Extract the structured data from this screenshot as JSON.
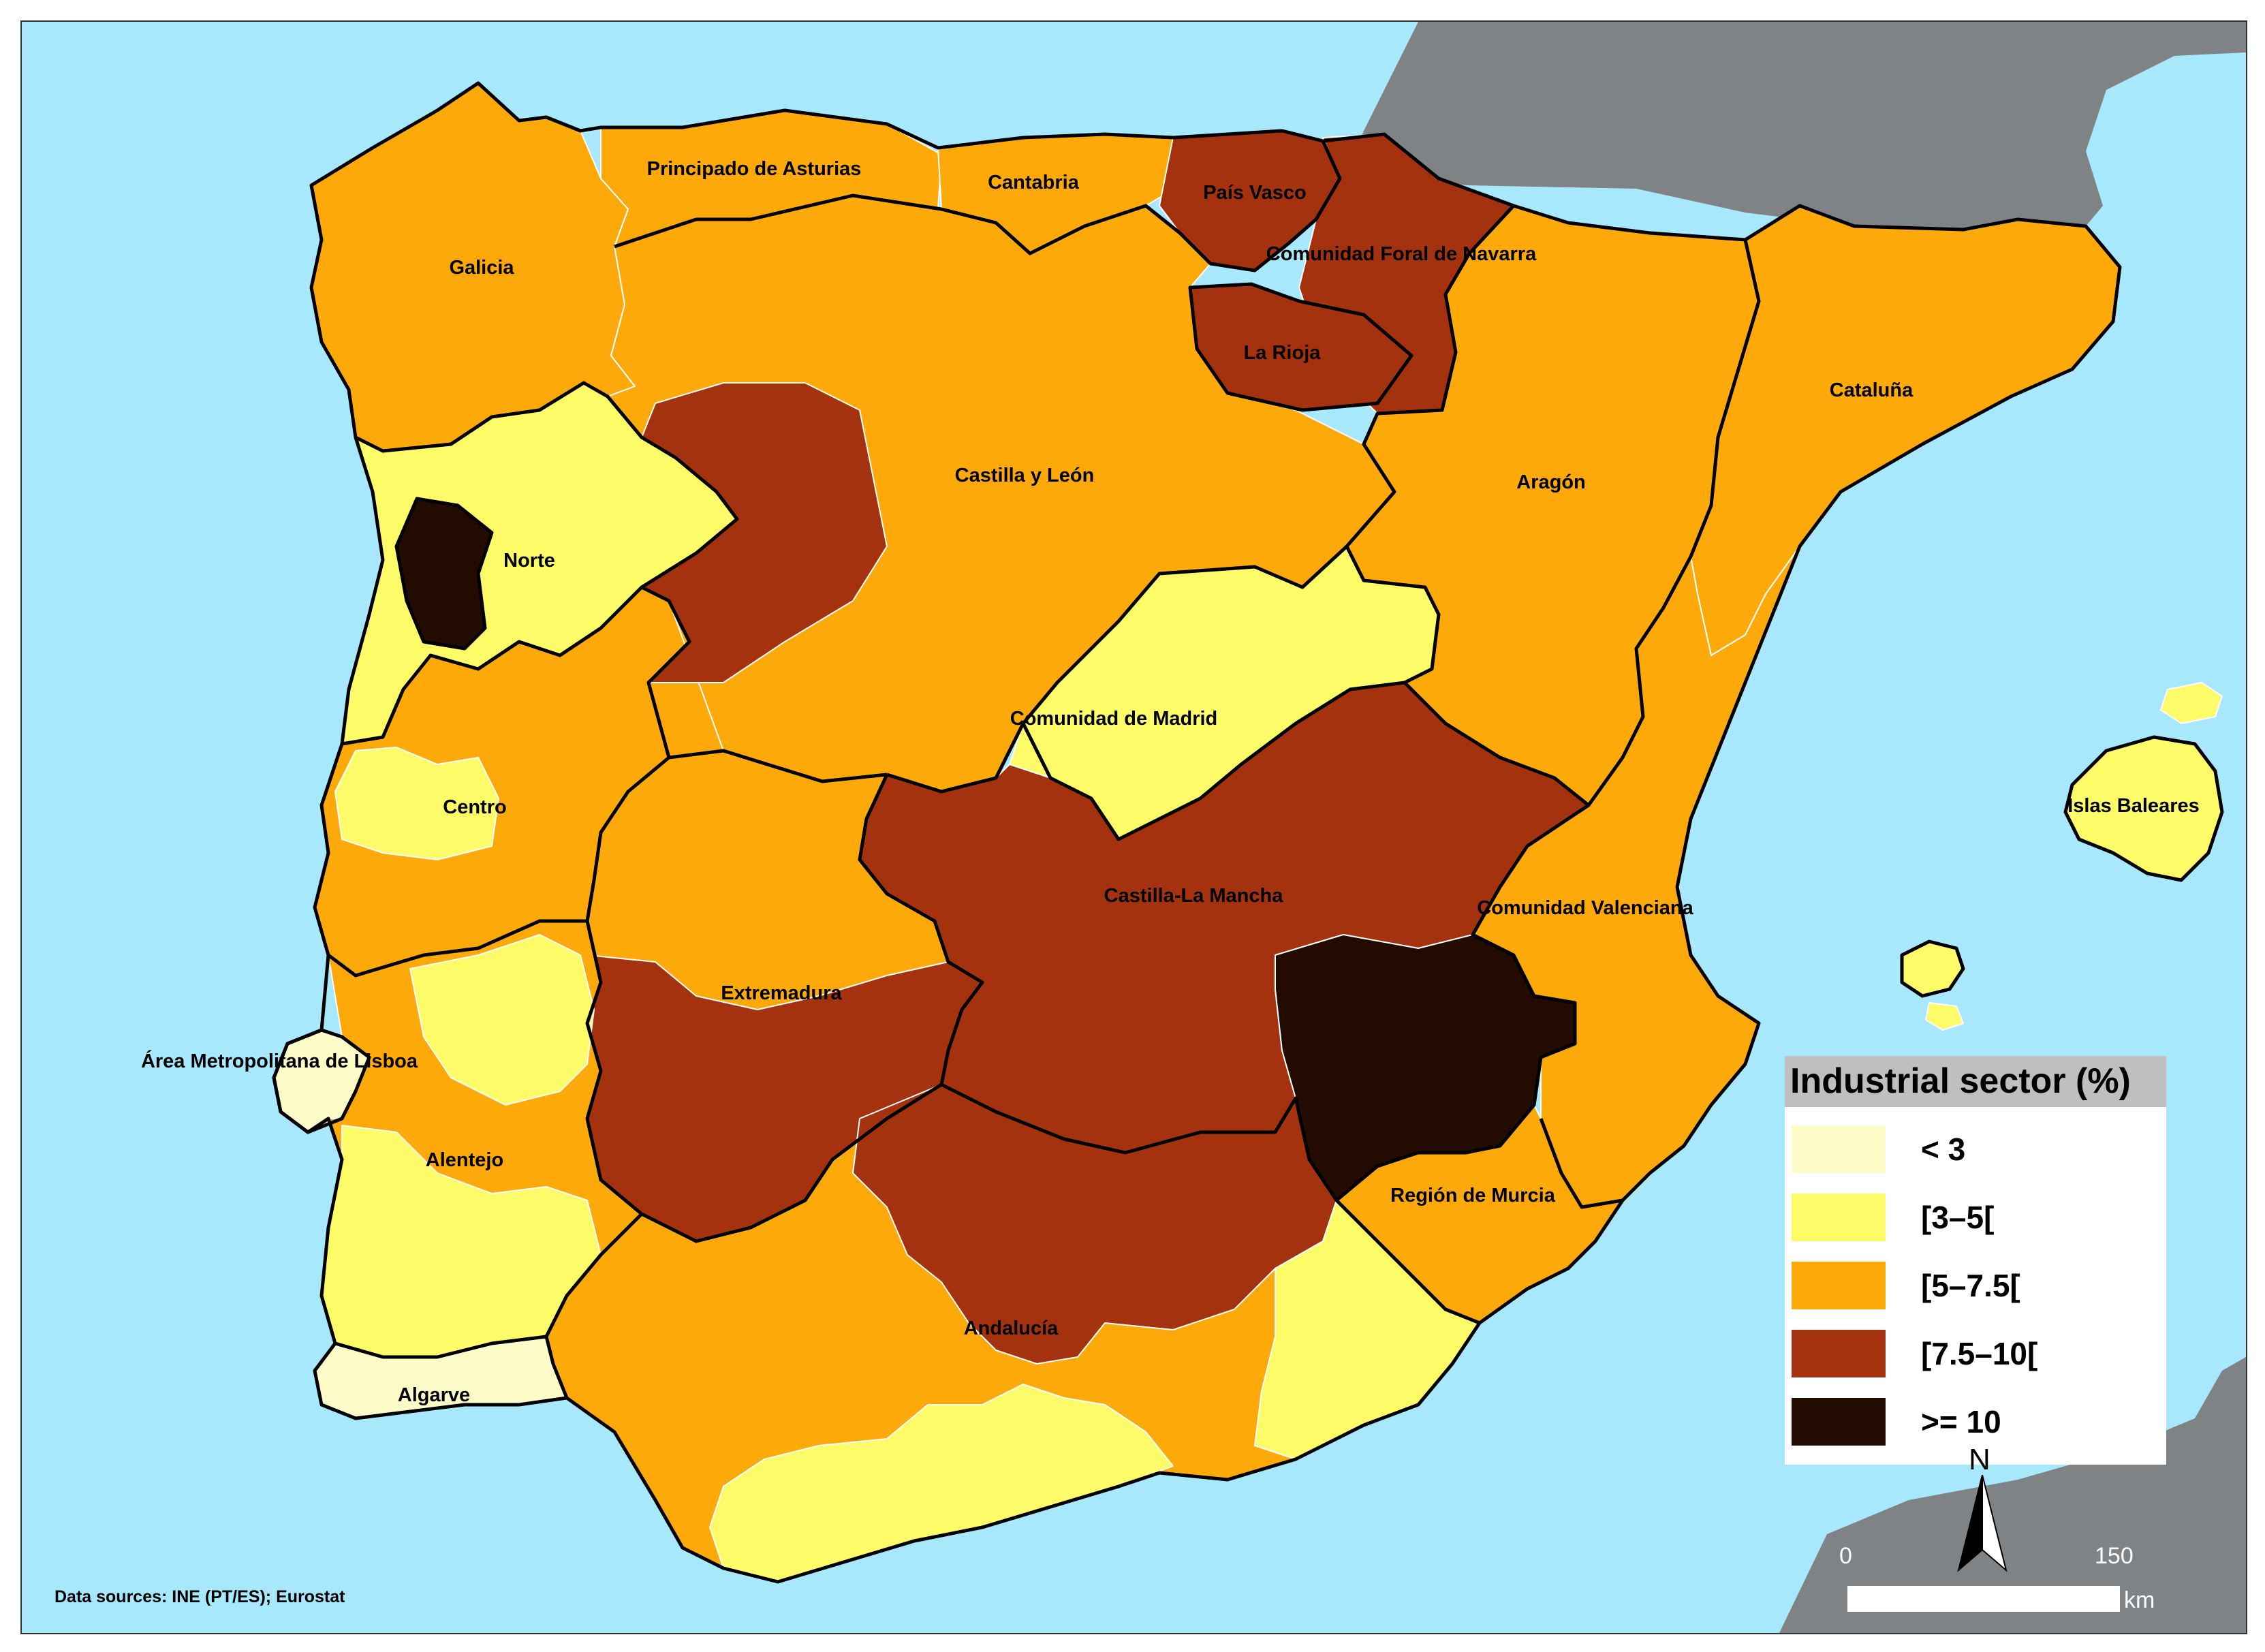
{
  "colors": {
    "sea": "#a8e8fc",
    "other_land": "#808386",
    "lt3": "#fdfcc8",
    "c3_5": "#fdfc68",
    "c5_7_5": "#fda90a",
    "c7_5_10": "#a4320f",
    "ge10": "#230b02"
  },
  "regions": [
    {
      "name": "Galicia",
      "class": "5–7.5"
    },
    {
      "name": "Principado de Asturias",
      "class": "5–7.5"
    },
    {
      "name": "Cantabria",
      "class": "5–7.5"
    },
    {
      "name": "País Vasco",
      "class": "7.5–10"
    },
    {
      "name": "Comunidad Foral de Navarra",
      "class": "7.5–10"
    },
    {
      "name": "La Rioja",
      "class": "7.5–10"
    },
    {
      "name": "Castilla y León",
      "class": "5–7.5"
    },
    {
      "name": "Aragón",
      "class": "5–7.5"
    },
    {
      "name": "Cataluña",
      "class": "5–7.5"
    },
    {
      "name": "Norte",
      "class": "3–5"
    },
    {
      "name": "Comunidad de Madrid",
      "class": "3–5"
    },
    {
      "name": "Centro",
      "class": "5–7.5"
    },
    {
      "name": "Castilla-La Mancha",
      "class": "7.5–10"
    },
    {
      "name": "Comunidad Valenciana",
      "class": "5–7.5"
    },
    {
      "name": "Islas Baleares",
      "class": "3–5"
    },
    {
      "name": "Extremadura",
      "class": "7.5–10"
    },
    {
      "name": "Área Metropolitana de Lisboa",
      "class": "< 3"
    },
    {
      "name": "Alentejo",
      "class": "3–5"
    },
    {
      "name": "Región de Murcia",
      "class": "5–7.5"
    },
    {
      "name": "Andalucía",
      "class": "7.5–10"
    },
    {
      "name": "Algarve",
      "class": "< 3"
    }
  ],
  "legend": {
    "title": "Industrial sector (%)",
    "items": [
      {
        "label": "< 3",
        "color": "#fdfcc8"
      },
      {
        "label": "[3–5[",
        "color": "#fdfc68"
      },
      {
        "label": "[5–7.5[",
        "color": "#fda90a"
      },
      {
        "label": "[7.5–10[",
        "color": "#a4320f"
      },
      {
        "label": ">= 10",
        "color": "#230b02"
      }
    ]
  },
  "north_label": "N",
  "scale": {
    "zero": "0",
    "max": "150",
    "unit": "km"
  },
  "sources": "Data sources: INE (PT/ES); Eurostat"
}
